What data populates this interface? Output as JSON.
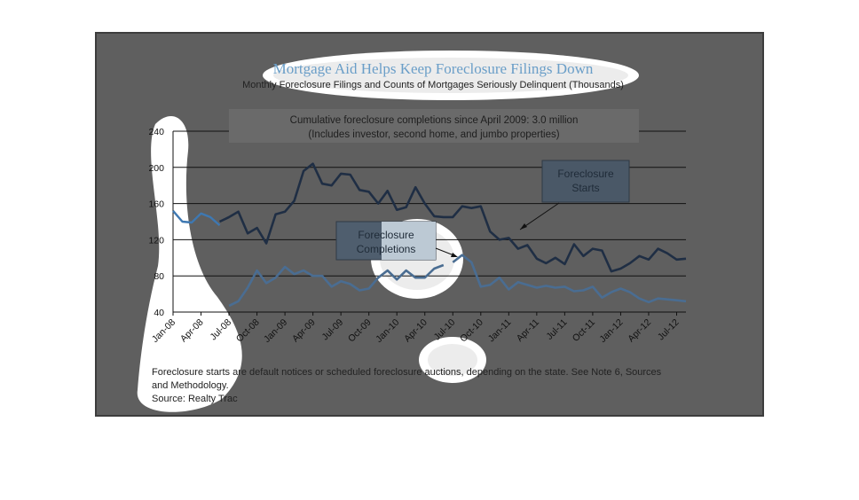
{
  "chart_data": {
    "type": "line",
    "title": "Mortgage Aid Helps Keep Foreclosure Filings Down",
    "subtitle": "Monthly Foreclosure Filings and Counts of Mortgages Seriously Delinquent (Thousands)",
    "banner": {
      "line1": "Cumulative foreclosure completions since April 2009: 3.0 million",
      "line2": "(Includes investor, second home, and jumbo properties)"
    },
    "ylim": [
      40,
      240
    ],
    "yticks": [
      40,
      80,
      120,
      160,
      200,
      240
    ],
    "x_tick_labels": [
      "Jan-08",
      "Apr-08",
      "Jul-08",
      "Oct-08",
      "Jan-09",
      "Apr-09",
      "Jul-09",
      "Oct-09",
      "Jan-10",
      "Apr-10",
      "Jul-10",
      "Oct-10",
      "Jan-11",
      "Apr-11",
      "Jul-11",
      "Oct-11",
      "Jan-12",
      "Apr-12",
      "Jul-12"
    ],
    "x_start": "Jan-08",
    "series": [
      {
        "name": "Foreclosure Starts",
        "color": "#1f2e44",
        "values": [
          null,
          null,
          null,
          null,
          null,
          140,
          145,
          151,
          127,
          133,
          116,
          148,
          151,
          163,
          196,
          204,
          182,
          180,
          193,
          192,
          175,
          173,
          160,
          174,
          153,
          156,
          178,
          160,
          146,
          145,
          145,
          157,
          155,
          157,
          129,
          120,
          122,
          110,
          114,
          99,
          94,
          100,
          93,
          115,
          102,
          110,
          108,
          85,
          88,
          94,
          102,
          98,
          110,
          105,
          98,
          99
        ]
      },
      {
        "name": "Foreclosure Completions",
        "color": "#4a6d92",
        "values": [
          null,
          null,
          null,
          null,
          null,
          null,
          null,
          null,
          null,
          null,
          null,
          null,
          null,
          null,
          null,
          null,
          null,
          null,
          null,
          null,
          null,
          null,
          null,
          null,
          null,
          null,
          null,
          null,
          null,
          null,
          95,
          103,
          95,
          68,
          70,
          78,
          65,
          73,
          70,
          67,
          69,
          67,
          68,
          63,
          64,
          68,
          56,
          62,
          66,
          62,
          55,
          51,
          55,
          54,
          53,
          52
        ]
      }
    ],
    "series_partial_early_completions": [
      47,
      52,
      67,
      86,
      72,
      78,
      90,
      82,
      86,
      80,
      80,
      68,
      74,
      71,
      64,
      66,
      78,
      86,
      76,
      86,
      78,
      78,
      88,
      92
    ],
    "early_starts": [
      152,
      140,
      139,
      149,
      145,
      136
    ],
    "callouts": {
      "starts": {
        "line1": "Foreclosure",
        "line2": "Starts"
      },
      "completions": {
        "line1": "Foreclosure",
        "line2": "Completions"
      }
    },
    "footnote": {
      "line1": "Foreclosure starts are default notices or scheduled foreclosure auctions, depending on the state. See Note 6, Sources",
      "line2": "and Methodology.",
      "line3": "Source: Realty Trac"
    }
  }
}
